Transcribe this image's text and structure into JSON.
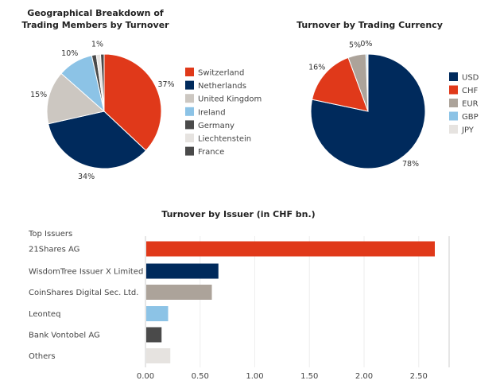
{
  "chart_data": [
    {
      "type": "pie",
      "title": "Geographical Breakdown of Trading Members by Turnover",
      "labels": [
        "Switzerland",
        "Netherlands",
        "United Kingdom",
        "Ireland",
        "Germany",
        "Liechtenstein",
        "France"
      ],
      "values": [
        37,
        34.5,
        15,
        10,
        1.3,
        1.2,
        1
      ],
      "data_labels": [
        "37%",
        "34%",
        "15%",
        "10%",
        "",
        "1%",
        ""
      ],
      "colors": [
        "#e0391a",
        "#002a5c",
        "#ccc7c1",
        "#8cc3e6",
        "#4a4a4a",
        "#e6e3e0",
        "#4a4a4a"
      ],
      "legend": "right"
    },
    {
      "type": "pie",
      "title": "Turnover by Trading Currency",
      "labels": [
        "USD",
        "CHF",
        "EUR",
        "GBP",
        "JPY"
      ],
      "values": [
        78,
        16,
        5,
        0.4,
        0.2
      ],
      "data_labels": [
        "78%",
        "16%",
        "5%",
        "0%",
        ""
      ],
      "colors": [
        "#002a5c",
        "#e0391a",
        "#aca39a",
        "#8cc3e6",
        "#e6e3e0"
      ],
      "legend": "right"
    },
    {
      "type": "bar",
      "orientation": "horizontal",
      "title": "Turnover by Issuer (in CHF bn.)",
      "ylabel": "Top Issuers",
      "categories": [
        "21Shares AG",
        "WisdomTree Issuer X Limited",
        "CoinShares Digital Sec. Ltd.",
        "Leonteq",
        "Bank Vontobel AG",
        "Others"
      ],
      "values": [
        2.64,
        0.66,
        0.6,
        0.2,
        0.14,
        0.22
      ],
      "colors": [
        "#e0391a",
        "#002a5c",
        "#aca39a",
        "#8cc3e6",
        "#4a4a4a",
        "#e6e3e0"
      ],
      "xticks": [
        "0.00",
        "0.50",
        "1.00",
        "1.50",
        "2.00",
        "2.50"
      ],
      "xlim": [
        0,
        2.78
      ],
      "grid": true
    }
  ]
}
